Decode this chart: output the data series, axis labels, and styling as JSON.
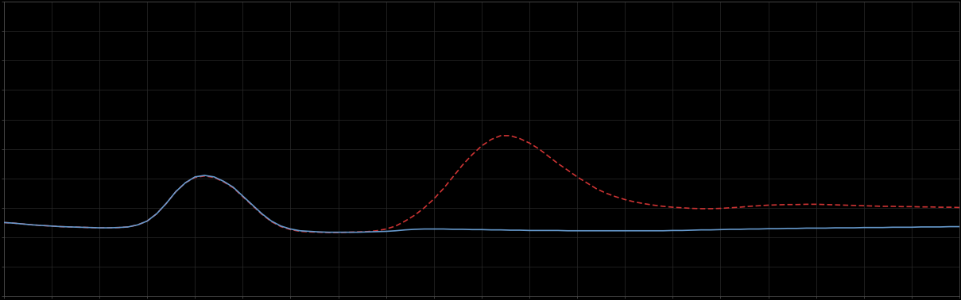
{
  "background_color": "#000000",
  "plot_bg_color": "#000000",
  "figure_bg_color": "#000000",
  "grid_color": "#2a2a2a",
  "line1_color": "#6699cc",
  "line2_color": "#cc3333",
  "line_width": 1.2,
  "xlim": [
    0,
    100
  ],
  "ylim": [
    0,
    10
  ],
  "spine_color": "#555555",
  "tick_color": "#555555",
  "x_data": [
    0,
    1,
    2,
    3,
    4,
    5,
    6,
    7,
    8,
    9,
    10,
    11,
    12,
    13,
    14,
    15,
    16,
    17,
    18,
    19,
    20,
    21,
    22,
    23,
    24,
    25,
    26,
    27,
    28,
    29,
    30,
    31,
    32,
    33,
    34,
    35,
    36,
    37,
    38,
    39,
    40,
    41,
    42,
    43,
    44,
    45,
    46,
    47,
    48,
    49,
    50,
    51,
    52,
    53,
    54,
    55,
    56,
    57,
    58,
    59,
    60,
    61,
    62,
    63,
    64,
    65,
    66,
    67,
    68,
    69,
    70,
    71,
    72,
    73,
    74,
    75,
    76,
    77,
    78,
    79,
    80,
    81,
    82,
    83,
    84,
    85,
    86,
    87,
    88,
    89,
    90,
    91,
    92,
    93,
    94,
    95,
    96,
    97,
    98,
    99,
    100
  ],
  "y_blue": [
    2.5,
    2.48,
    2.45,
    2.42,
    2.4,
    2.38,
    2.36,
    2.35,
    2.34,
    2.33,
    2.32,
    2.32,
    2.33,
    2.35,
    2.42,
    2.55,
    2.8,
    3.15,
    3.55,
    3.85,
    4.05,
    4.1,
    4.05,
    3.9,
    3.7,
    3.4,
    3.1,
    2.8,
    2.55,
    2.38,
    2.28,
    2.22,
    2.2,
    2.18,
    2.17,
    2.17,
    2.17,
    2.17,
    2.18,
    2.19,
    2.2,
    2.22,
    2.25,
    2.27,
    2.28,
    2.28,
    2.28,
    2.27,
    2.27,
    2.26,
    2.26,
    2.25,
    2.25,
    2.24,
    2.24,
    2.23,
    2.23,
    2.23,
    2.23,
    2.22,
    2.22,
    2.22,
    2.22,
    2.22,
    2.22,
    2.22,
    2.22,
    2.22,
    2.22,
    2.22,
    2.23,
    2.23,
    2.24,
    2.25,
    2.25,
    2.26,
    2.27,
    2.27,
    2.28,
    2.28,
    2.29,
    2.29,
    2.3,
    2.3,
    2.31,
    2.31,
    2.31,
    2.32,
    2.32,
    2.32,
    2.33,
    2.33,
    2.33,
    2.34,
    2.34,
    2.34,
    2.35,
    2.35,
    2.35,
    2.36,
    2.36
  ],
  "y_red": [
    2.5,
    2.48,
    2.45,
    2.42,
    2.4,
    2.38,
    2.36,
    2.35,
    2.34,
    2.33,
    2.32,
    2.32,
    2.33,
    2.35,
    2.42,
    2.55,
    2.8,
    3.15,
    3.55,
    3.85,
    4.03,
    4.08,
    4.03,
    3.88,
    3.68,
    3.38,
    3.08,
    2.78,
    2.53,
    2.36,
    2.26,
    2.2,
    2.18,
    2.17,
    2.16,
    2.16,
    2.17,
    2.18,
    2.19,
    2.22,
    2.28,
    2.38,
    2.55,
    2.75,
    3.0,
    3.3,
    3.65,
    4.05,
    4.45,
    4.8,
    5.1,
    5.32,
    5.45,
    5.45,
    5.35,
    5.2,
    5.0,
    4.75,
    4.5,
    4.28,
    4.05,
    3.85,
    3.65,
    3.5,
    3.38,
    3.28,
    3.2,
    3.14,
    3.09,
    3.05,
    3.02,
    3.0,
    2.98,
    2.97,
    2.97,
    2.98,
    3.0,
    3.02,
    3.05,
    3.07,
    3.09,
    3.1,
    3.11,
    3.11,
    3.12,
    3.12,
    3.11,
    3.1,
    3.09,
    3.08,
    3.07,
    3.06,
    3.05,
    3.05,
    3.04,
    3.04,
    3.03,
    3.03,
    3.02,
    3.02,
    3.01
  ],
  "grid_nx": 20,
  "grid_ny": 10
}
